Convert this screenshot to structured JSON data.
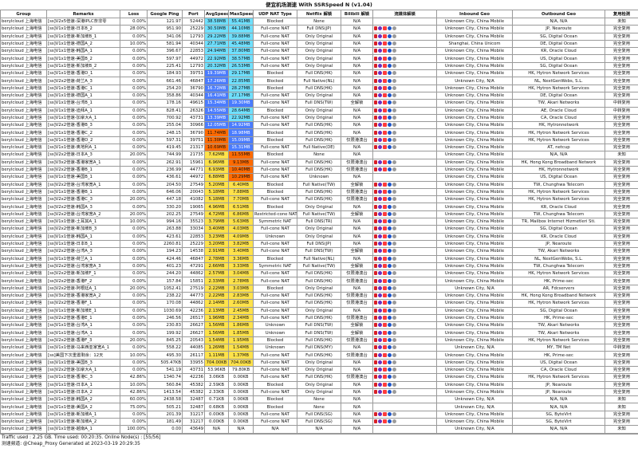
{
  "title": "便宜机场测速 With SSRSpeed N (v1.04)",
  "headers": [
    "Group",
    "Remarks",
    "Loss",
    "Google Ping",
    "Port",
    "AvgSpeed",
    "MaxSpeed",
    "UDP NAT Type",
    "Netflix 解锁",
    "Bilibili 解锁",
    "流媒体解锁",
    "Inbound Geo",
    "Outbound Geo",
    "复用检测"
  ],
  "rows": [
    [
      "berylcloud 上海电信",
      "[ss]V2x5倍速-深港IPLC奈非零",
      "0.00%",
      "121.97",
      "52442",
      "38.58MB",
      "55.41MB",
      "Blocked",
      "None",
      "N/A",
      "",
      "Unknown City, China Mobile",
      "N/A, N/A",
      "未知"
    ],
    [
      "berylcloud 上海电信",
      "[ss]V1x1倍速-日本B_2",
      "28.00%",
      "951.90",
      "25229",
      "30.50MB",
      "44.10MB",
      "Full-cone NAT",
      "Full DNS(JP)",
      "N/A",
      "",
      "Unknown City, China Mobile",
      "JP, Nearoute",
      "完全复用"
    ],
    [
      "berylcloud 上海电信",
      "[ss]V1x1倍速-新加坡B_1",
      "0.00%",
      "341.06",
      "12793",
      "29.22MB",
      "39.88MB",
      "Full-cone NAT",
      "Only Original",
      "N/A",
      "",
      "Unknown City, China Mobile",
      "SG, Digital Ocean",
      "完全复用"
    ],
    [
      "berylcloud 上海电信",
      "[ss]V1x1倍速-德国A_2",
      "10.00%",
      "581.94",
      "40344",
      "27.71MB",
      "45.48MB",
      "Full-cone NAT",
      "Only Original",
      "N/A",
      "",
      "Shanghai, China Unicom",
      "DE, Digital Ocean",
      "完全复用"
    ],
    [
      "berylcloud 上海电信",
      "[ss]V1x1倍速-韩国A_1",
      "0.00%",
      "396.67",
      "22853",
      "24.94MB",
      "37.80MB",
      "Full-cone NAT",
      "Only Original",
      "N/A",
      "",
      "Unknown City, China Mobile",
      "KR, Oracle Cloud",
      "完全复用"
    ],
    [
      "berylcloud 上海电信",
      "[ss]V1x1倍速-美国B_2",
      "0.00%",
      "597.97",
      "44972",
      "22.92MB",
      "38.57MB",
      "Full-cone NAT",
      "Only Original",
      "N/A",
      "",
      "Unknown City, China Mobile",
      "US, Digital Ocean",
      "完全复用"
    ],
    [
      "berylcloud 上海电信",
      "[ss]V1x1倍速-新加坡B_2",
      "0.00%",
      "225.41",
      "12793",
      "20.32MB",
      "26.53MB",
      "Full-cone NAT",
      "Only Original",
      "N/A",
      "",
      "Unknown City, China Mobile",
      "SG, Digital Ocean",
      "完全复用"
    ],
    [
      "berylcloud 上海电信",
      "[ss]V1x1倍速-香港D_1",
      "0.00%",
      "184.93",
      "39751",
      "19.39MB",
      "29.17MB",
      "Blocked",
      "Full DNS(HK)",
      "N/A",
      "",
      "Unknown City, China Mobile",
      "HK, Hytron Network Services",
      "完全复用"
    ],
    [
      "berylcloud 上海电信",
      "[ss]V2x2倍速-荷兰A_3",
      "0.00%",
      "661.46",
      "46847",
      "17.26MB",
      "22.85MB",
      "Blocked",
      "Full Native(NL)",
      "N/A",
      "",
      "Unknown City, N/A",
      "NL, NextGenWebs, S.L.",
      "完全复用"
    ],
    [
      "berylcloud 上海电信",
      "[ss]V1x1倍速-香港C_1",
      "0.00%",
      "254.20",
      "36790",
      "16.72MB",
      "28.27MB",
      "Blocked",
      "Full DNS(HK)",
      "N/A",
      "",
      "Unknown City, China Mobile",
      "HK, Hytron Network Services",
      "完全复用"
    ],
    [
      "berylcloud 上海电信",
      "[ss]V1x1倍速-德国A_1",
      "0.00%",
      "358.86",
      "40344",
      "16.41MB",
      "27.17MB",
      "Full-cone NAT",
      "Only Original",
      "N/A",
      "",
      "Unknown City, China Mobile",
      "DE, Digital Ocean",
      "完全复用"
    ],
    [
      "berylcloud 上海电信",
      "[ss]V1x1倍速-台湾B_1",
      "0.00%",
      "178.16",
      "49615",
      "15.34MB",
      "19.30MB",
      "Full-cone NAT",
      "Full DNS(TW)",
      "全解锁",
      "",
      "Unknown City, China Mobile",
      "TW, Akari Networks",
      "中转复用"
    ],
    [
      "berylcloud 上海电信",
      "[ss]V1x1倍速-迪拜A_1",
      "0.00%",
      "828.41",
      "26326",
      "14.55MB",
      "28.64MB",
      "Blocked",
      "Only Original",
      "N/A",
      "",
      "Unknown City, China Mobile",
      "AE, Oracle Cloud",
      "中转复用"
    ],
    [
      "berylcloud 上海电信",
      "[ss]V1x1倍速-加拿大A_1",
      "0.00%",
      "700.92",
      "43731",
      "13.39MB",
      "22.92MB",
      "Full-cone NAT",
      "Only Original",
      "N/A",
      "",
      "Unknown City, China Mobile",
      "CA, Oracle Cloud",
      "完全复用"
    ],
    [
      "berylcloud 上海电信",
      "[ss]V2x2倍速-香港B_3",
      "0.00%",
      "255.04",
      "30966",
      "12.05MB",
      "14.92MB",
      "Full-cone NAT",
      "Full DNS(HK)",
      "N/A",
      "",
      "Unknown City, China Mobile",
      "HK, Hytronnetwork",
      "完全复用"
    ],
    [
      "berylcloud 上海电信",
      "[ss]V1x1倍速-香港C_2",
      "0.00%",
      "248.15",
      "36790",
      "11.74MB",
      "18.98MB",
      "Blocked",
      "Full DNS(HK)",
      "N/A",
      "",
      "Unknown City, China Mobile",
      "HK, Hytron Network Services",
      "完全复用"
    ],
    [
      "berylcloud 上海电信",
      "[ss]V1x1倍速-香港D_2",
      "0.00%",
      "597.31",
      "39751",
      "11.30MB",
      "15.09MB",
      "Blocked",
      "Full DNS(HK)",
      "仅限港澳台",
      "",
      "Unknown City, China Mobile",
      "HK, Hytron Network Services",
      "完全复用"
    ],
    [
      "berylcloud 上海电信",
      "[ss]V1x1倍速-奥地利A_1",
      "0.00%",
      "419.45",
      "21317",
      "10.69MB",
      "15.31MB",
      "Full-cone NAT",
      "Full Native(DE)",
      "N/A",
      "",
      "Unknown City, China Mobile",
      "AT, netcup",
      "完全复用"
    ],
    [
      "berylcloud 上海电信",
      "[ss]V2x2倍速-日本A_3",
      "20.00%",
      "744.99",
      "21735",
      "7.62MB",
      "11.55MB",
      "Blocked",
      "None",
      "N/A",
      "",
      "Unknown City, China Mobile",
      "N/A, N/A",
      "未知"
    ],
    [
      "berylcloud 上海电信",
      "[ss]V3x2倍速-香港家宽A_1",
      "0.00%",
      "262.91",
      "15961",
      "6.96MB",
      "9.13MB",
      "Full-cone NAT",
      "Full DNS(HK)",
      "仅限港澳台",
      "",
      "Unknown City, China Mobile",
      "HK, Hong Kong Broadband Network",
      "完全复用"
    ],
    [
      "berylcloud 上海电信",
      "[ss]V2x2倍速-香港B_1",
      "0.00%",
      "236.99",
      "44771",
      "6.93MB",
      "10.40MB",
      "Full-cone NAT",
      "Full DNS(HK)",
      "仅限港澳台",
      "",
      "Unknown City, China Mobile",
      "HK, Hytronnetwork",
      "完全复用"
    ],
    [
      "berylcloud 上海电信",
      "[ss]V1x1倍速-美国B_1",
      "0.00%",
      "436.61",
      "44972",
      "6.88MB",
      "10.29MB",
      "Full-cone NAT",
      "Unknown",
      "N/A",
      "",
      "Unknown City, China Mobile",
      "US, Digital Ocean",
      "完全复用"
    ],
    [
      "berylcloud 上海电信",
      "[ss]V2x2倍速-台湾家宽A_1",
      "0.00%",
      "204.50",
      "27549",
      "5.20MB",
      "6.40MB",
      "Blocked",
      "Full Native(TW)",
      "全解锁",
      "",
      "Unknown City, China Mobile",
      "TW, Chunghwa Telecom",
      "完全复用"
    ],
    [
      "berylcloud 上海电信",
      "[ss]V1x1倍速-香港B_1",
      "0.00%",
      "646.06",
      "20043",
      "5.18MB",
      "7.88MB",
      "Blocked",
      "Full DNS(HK)",
      "仅限港澳台",
      "",
      "Unknown City, China Mobile",
      "HK, Hytron Network Services",
      "完全复用"
    ],
    [
      "berylcloud 上海电信",
      "[ss]V2x2倍速-香港C_3",
      "20.00%",
      "447.18",
      "41082",
      "5.18MB",
      "7.70MB",
      "Full-cone NAT",
      "Full DNS(HK)",
      "仅限港澳台",
      "",
      "Unknown City, China Mobile",
      "HK, Hytron Network Services",
      "完全复用"
    ],
    [
      "berylcloud 上海电信",
      "[ss]V2x2倍速-韩国A_3",
      "0.00%",
      "330.20",
      "19065",
      "4.96MB",
      "6.51MB",
      "Blocked",
      "Only Original",
      "N/A",
      "",
      "Unknown City, China Mobile",
      "KR, Oracle Cloud",
      "完全复用"
    ],
    [
      "berylcloud 上海电信",
      "[ss]V2x2倍速-台湾家宽A_2",
      "20.00%",
      "202.25",
      "27549",
      "4.72MB",
      "6.86MB",
      "Restricted-cone NAT",
      "Full Native(TW)",
      "全解锁",
      "",
      "Unknown City, China Mobile",
      "TW, Chunghwa Telecom",
      "完全复用"
    ],
    [
      "berylcloud 上海电信",
      "[ss]V1x1倍速-土耳其A_1",
      "10.00%",
      "994.16",
      "35523",
      "3.79MB",
      "5.63MB",
      "Symmetric NAT",
      "Full DNS(TR)",
      "N/A",
      "",
      "Unknown City, China Mobile",
      "TR, Mailbox Internet Hizmetleri Sti.",
      "完全复用"
    ],
    [
      "berylcloud 上海电信",
      "[ss]V2x2倍速-新加坡B_3",
      "0.00%",
      "263.88",
      "33034",
      "3.40MB",
      "4.03MB",
      "Full-cone NAT",
      "Only Original",
      "N/A",
      "",
      "Unknown City, China Mobile",
      "SG, Digital Ocean",
      "完全复用"
    ],
    [
      "berylcloud 上海电信",
      "[ss]V1x1倍速-韩国A_1",
      "0.00%",
      "423.61",
      "22853",
      "3.23MB",
      "4.09MB",
      "Unknown",
      "Only Original",
      "N/A",
      "",
      "Unknown City, China Mobile",
      "KR, Oracle Cloud",
      "完全复用"
    ],
    [
      "berylcloud 上海电信",
      "[ss]V1x1倍速-日本B_1",
      "0.00%",
      "2260.81",
      "25229",
      "3.20MB",
      "3.82MB",
      "Full-cone NAT",
      "Full DNS(JP)",
      "N/A",
      "",
      "Unknown City, China Mobile",
      "JP, Nearoute",
      "完全复用"
    ],
    [
      "berylcloud 上海电信",
      "[ss]V2x2倍速-台湾A_3",
      "0.00%",
      "194.23",
      "14538",
      "2.91MB",
      "3.40MB",
      "Full-cone NAT",
      "Full DNS(TW)",
      "全解锁",
      "",
      "Unknown City, China Mobile",
      "TW, Akari Networks",
      "完全复用"
    ],
    [
      "berylcloud 上海电信",
      "[ss]V1x1倍速-荷兰A_1",
      "0.00%",
      "424.46",
      "46847",
      "2.78MB",
      "3.36MB",
      "Blocked",
      "Full Native(NL)",
      "N/A",
      "",
      "Unknown City, China Mobile",
      "NL, NextGenWebs, S.L.",
      "完全复用"
    ],
    [
      "berylcloud 上海电信",
      "[ss]V2x2倍速-台湾家宽A_3",
      "0.00%",
      "401.23",
      "47291",
      "2.66MB",
      "3.33MB",
      "Symmetric NAT",
      "Full Native(TW)",
      "全解锁",
      "",
      "Unknown City, China Mobile",
      "TW, Chunghwa Telecom",
      "完全复用"
    ],
    [
      "berylcloud 上海电信",
      "[ss]V2x2倍速-新加坡F_1",
      "0.00%",
      "244.20",
      "44862",
      "2.57MB",
      "3.04MB",
      "Full-cone NAT",
      "Full DNS(HK)",
      "仅限港澳台",
      "",
      "Unknown City, China Mobile",
      "HK, Hytron Network Services",
      "完全复用"
    ],
    [
      "berylcloud 上海电信",
      "[ss]V2x2倍速-香港F_2",
      "0.00%",
      "157.84",
      "15851",
      "2.33MB",
      "2.78MB",
      "Full-cone NAT",
      "Full DNS(HK)",
      "仅限港澳台",
      "",
      "Unknown City, China Mobile",
      "HK, Prime-sec",
      "完全复用"
    ],
    [
      "berylcloud 上海电信",
      "[ss]V2x2倍速-阿根廷A_1",
      "20.00%",
      "1052.41",
      "27519",
      "2.22MB",
      "3.03MB",
      "Blocked",
      "Only Original",
      "N/A",
      "",
      "Unknown City, N/A",
      "AR, Fdcservers",
      "完全复用"
    ],
    [
      "berylcloud 上海电信",
      "[ss]V3x2倍速-香港家宽A_2",
      "0.00%",
      "238.22",
      "44773",
      "2.22MB",
      "2.83MB",
      "Full-cone NAT",
      "Full DNS(HK)",
      "仅限港澳台",
      "",
      "Unknown City, China Mobile",
      "HK, Hong Kong Broadband Network",
      "完全复用"
    ],
    [
      "berylcloud 上海电信",
      "[ss]V2x2倍速-香港F_1",
      "0.00%",
      "170.08",
      "44862",
      "2.14MB",
      "2.60MB",
      "Full-cone NAT",
      "Full DNS(HK)",
      "仅限港澳台",
      "",
      "Unknown City, China Mobile",
      "HK, Hytron Network Services",
      "完全复用"
    ],
    [
      "berylcloud 上海电信",
      "[ss]V1x1倍速-新加坡E_1",
      "0.00%",
      "1030.69",
      "42236",
      "2.13MB",
      "2.45MB",
      "Full-cone NAT",
      "Only Original",
      "N/A",
      "",
      "Unknown City, China Mobile",
      "SG, Digital Ocean",
      "完全复用"
    ],
    [
      "berylcloud 上海电信",
      "[ss]V2x2倍速-香港E_1",
      "0.00%",
      "246.56",
      "26517",
      "1.96MB",
      "2.34MB",
      "Full-cone NAT",
      "Full DNS(HK)",
      "仅限港澳台",
      "",
      "Unknown City, China Mobile",
      "HK, Prime-sec",
      "完全复用"
    ],
    [
      "berylcloud 上海电信",
      "[ss]V1x1倍速-台湾A_1",
      "0.00%",
      "230.83",
      "26627",
      "1.56MB",
      "1.86MB",
      "Unknown",
      "Full DNS(TW)",
      "全解锁",
      "",
      "Unknown City, China Mobile",
      "TW, Akari Networks",
      "完全复用"
    ],
    [
      "berylcloud 上海电信",
      "[ss]V1x1倍速-台湾A_1",
      "0.00%",
      "199.92",
      "26627",
      "1.56MB",
      "1.85MB",
      "Unknown",
      "Full DNS(TW)",
      "全解锁",
      "",
      "Unknown City, China Mobile",
      "TW, Akari Networks",
      "完全复用"
    ],
    [
      "berylcloud 上海电信",
      "[ss]V2x2倍速-香港F_3",
      "20.00%",
      "845.25",
      "20543",
      "1.54MB",
      "1.95MB",
      "Blocked",
      "Full DNS(HK)",
      "仅限港澳台",
      "",
      "Unknown City, China Mobile",
      "HK, Hytron Network Services",
      "完全复用"
    ],
    [
      "berylcloud 上海电信",
      "[ss]V1x1倍速-马来西亚家宽A_1",
      "0.00%",
      "558.22",
      "44085",
      "1.26MB",
      "1.54MB",
      "Unknown",
      "Full DNS(MY)",
      "N/A",
      "",
      "Unknown City, N/A",
      "MY, TM Net",
      "中转复用"
    ],
    [
      "berylcloud 上海电信",
      "[ss]美国下次重置剩余：12天",
      "10.00%",
      "495.30",
      "26117",
      "1.11MB",
      "1.37MB",
      "Full-cone NAT",
      "Full DNS(HK)",
      "仅限港澳台",
      "",
      "Unknown City, China Mobile",
      "HK, Prime-sec",
      "完全复用"
    ],
    [
      "berylcloud 上海电信",
      "[ss]V1x1倍速-美国B_3",
      "0.00%",
      "505.47KB",
      "33955",
      "704.00KB",
      "704.00KB",
      "Full-cone NAT",
      "Only Original",
      "N/A",
      "",
      "Unknown City, China Mobile",
      "US, Digital Ocean",
      "完全复用"
    ],
    [
      "berylcloud 上海电信",
      "[ss]V2x2倍速-加拿大A_1",
      "0.00%",
      "541.19",
      "43731",
      "53.96KB",
      "79.80KB",
      "Full-cone NAT",
      "Only Original",
      "N/A",
      "",
      "Unknown City, China Mobile",
      "CA, Oracle Cloud",
      "完全复用"
    ],
    [
      "berylcloud 上海电信",
      "[ss]V1x1倍速-香港C_3",
      "42.86%",
      "1340.74",
      "42236",
      "3.06KB",
      "0.00KB",
      "Full-cone NAT",
      "Full DNS(HK)",
      "仅限港澳台",
      "",
      "Unknown City, China Mobile",
      "HK, Hytron Network Services",
      "完全复用"
    ],
    [
      "berylcloud 上海电信",
      "[ss]V1x1倍速-日本A_1",
      "10.00%",
      "560.84",
      "45382",
      "2.59KB",
      "0.00KB",
      "Blocked",
      "Only Original",
      "N/A",
      "",
      "Unknown City, China Mobile",
      "JP, Nearoute",
      "完全复用"
    ],
    [
      "berylcloud 上海电信",
      "[ss]V1x1倍速-日本A_2",
      "42.86%",
      "1413.54",
      "45382",
      "2.33KB",
      "0.00KB",
      "Full-cone NAT",
      "Only Original",
      "N/A",
      "",
      "Unknown City, China Mobile",
      "JP, Nearoute",
      "完全复用"
    ],
    [
      "berylcloud 上海电信",
      "[ss]V1x1倍速-韩国A_2",
      "60.00%",
      "2438.58",
      "32487",
      "0.71KB",
      "0.00KB",
      "Blocked",
      "None",
      "N/A",
      "",
      "Unknown City, N/A",
      "N/A, N/A",
      "未知"
    ],
    [
      "berylcloud 上海电信",
      "[ss]V1x1倍速-美国A_2",
      "75.00%",
      "505.21",
      "32487",
      "0.68KB",
      "0.00KB",
      "Blocked",
      "None",
      "N/A",
      "",
      "Unknown City, N/A",
      "N/A, N/A",
      "未知"
    ],
    [
      "berylcloud 上海电信",
      "[ss]V1x1倍速-新加坡A_1",
      "0.00%",
      "201.39",
      "31217",
      "0.00KB",
      "0.00KB",
      "Full-cone NAT",
      "Full DNS(SG)",
      "N/A",
      "",
      "Unknown City, China Mobile",
      "SG, ByteVirt",
      "完全复用"
    ],
    [
      "berylcloud 上海电信",
      "[ss]V1x1倍速-新加坡A_2",
      "0.00%",
      "181.49",
      "31217",
      "0.00KB",
      "0.00KB",
      "Full-cone NAT",
      "Full DNS(SG)",
      "N/A",
      "",
      "Unknown City, China Mobile",
      "SG, ByteVirt",
      "完全复用"
    ],
    [
      "berylcloud 上海电信",
      "[ss]V1x1倍速-越南A_1",
      "100.00%",
      "0.00",
      "43649",
      "N/A",
      "N/A",
      "N/A",
      "N/A",
      "N/A",
      "",
      "Unknown City, N/A",
      "N/A, N/A",
      "未知"
    ]
  ],
  "footer": {
    "line1": "Traffic used : 2.25 GB.  Time used: 00:20:35.  Online Node(s) : [55/56]",
    "line2": "测速频道: @Cheap_Proxy  Generated at 2023-03-19 20:29:35"
  },
  "colors": {
    "speed_fast": "#6fe0ff",
    "speed_mid": "#4a7cff",
    "speed_slow": "#c080ff",
    "speed_warm": "#ff6a00",
    "speed_yellow": "#ffe24a",
    "speed_zero": "#ffffff"
  },
  "icons": [
    "netflix-icon",
    "hbo-icon",
    "youtube-icon",
    "disney-icon",
    "abema-icon"
  ]
}
